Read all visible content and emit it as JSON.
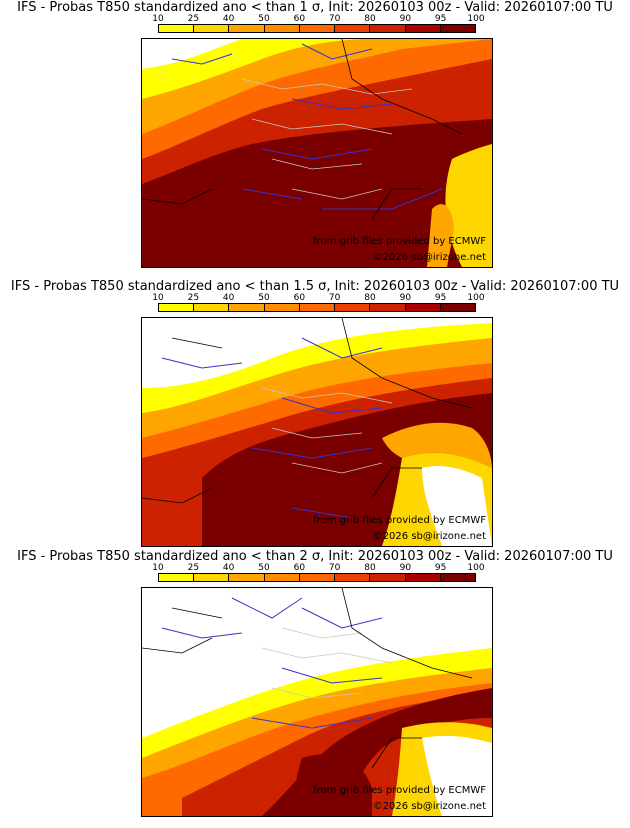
{
  "panels": [
    {
      "title": "IFS - Probas T850  standardized ano < than 1 σ, Init: 20260103 00z - Valid: 20260107:00 TU",
      "threshold": "1 σ"
    },
    {
      "title": "IFS - Probas T850  standardized ano < than 1.5 σ, Init: 20260103 00z - Valid: 20260107:00 TU",
      "threshold": "1.5 σ"
    },
    {
      "title": "IFS - Probas T850  standardized ano < than 2 σ, Init: 20260103 00z - Valid: 20260107:00 TU",
      "threshold": "2 σ"
    }
  ],
  "colorbar": {
    "ticks": [
      "10",
      "25",
      "40",
      "50",
      "60",
      "70",
      "80",
      "90",
      "95",
      "100"
    ],
    "colors": [
      "#ffff00",
      "#ffd700",
      "#ffa500",
      "#ff8c00",
      "#ff6a00",
      "#ee4000",
      "#cc2200",
      "#aa0000",
      "#7a0000"
    ]
  },
  "credits": {
    "source": "from grib files provided by ECMWF",
    "copyright": "©2026 sb@irizone.net"
  },
  "colors": {
    "land_background": "#ffffff",
    "country_border": "#000000",
    "river": "#3333cc",
    "department_border": "#c8c8c8"
  }
}
